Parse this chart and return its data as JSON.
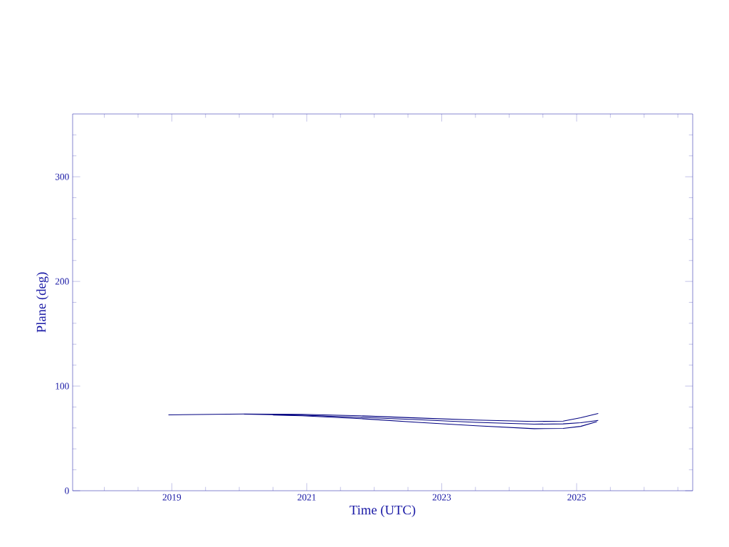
{
  "chart_data": {
    "type": "line",
    "xlabel": "Time (UTC)",
    "ylabel": "Plane (deg)",
    "xlim": [
      2017.53,
      2026.72
    ],
    "ylim": [
      0,
      360
    ],
    "xticks": [
      {
        "value": 2018,
        "label": null
      },
      {
        "value": 2018.5,
        "label": null
      },
      2019,
      {
        "value": 2019.5,
        "label": null
      },
      {
        "value": 2020,
        "label": null
      },
      {
        "value": 2020.5,
        "label": null
      },
      2021,
      {
        "value": 2021.5,
        "label": null
      },
      {
        "value": 2022,
        "label": null
      },
      {
        "value": 2022.5,
        "label": null
      },
      2023,
      {
        "value": 2023.5,
        "label": null
      },
      {
        "value": 2024,
        "label": null
      },
      {
        "value": 2024.5,
        "label": null
      },
      2025,
      {
        "value": 2025.5,
        "label": null
      },
      {
        "value": 2026,
        "label": null
      },
      {
        "value": 2026.5,
        "label": null
      }
    ],
    "yticks": [
      0,
      {
        "value": 20,
        "label": null
      },
      {
        "value": 40,
        "label": null
      },
      {
        "value": 60,
        "label": null
      },
      {
        "value": 80,
        "label": null
      },
      100,
      {
        "value": 120,
        "label": null
      },
      {
        "value": 140,
        "label": null
      },
      {
        "value": 160,
        "label": null
      },
      {
        "value": 180,
        "label": null
      },
      200,
      {
        "value": 220,
        "label": null
      },
      {
        "value": 240,
        "label": null
      },
      {
        "value": 260,
        "label": null
      },
      {
        "value": 280,
        "label": null
      },
      300,
      {
        "value": 320,
        "label": null
      },
      {
        "value": 340,
        "label": null
      }
    ],
    "x": [
      2018.95,
      2020.07,
      2020.93,
      2021.79,
      2022.65,
      2023.51,
      2024.37,
      2024.8,
      2025.06,
      2025.32
    ],
    "marker": "none",
    "line_style": "solid",
    "series": [
      {
        "color": "#000080",
        "values": [
          72.5,
          73.3,
          73.0,
          71.6,
          69.5,
          67.5,
          66.2,
          66.5,
          69.7,
          73.9
        ]
      },
      {
        "color": "#000080",
        "x": [
          2020.07,
          2020.93,
          2021.79,
          2022.65,
          2023.51,
          2024.37,
          2024.8,
          2025.06,
          2025.32
        ],
        "values": [
          73.1,
          72.2,
          70.1,
          67.9,
          65.3,
          63.6,
          63.9,
          65.0,
          67.2
        ]
      },
      {
        "color": "#000080",
        "x": [
          2020.5,
          2020.93,
          2021.79,
          2022.65,
          2023.51,
          2024.37,
          2024.8,
          2025.06,
          2025.3
        ],
        "values": [
          72.3,
          71.6,
          68.9,
          65.3,
          62.1,
          59.3,
          59.6,
          61.5,
          66.0
        ]
      }
    ]
  }
}
